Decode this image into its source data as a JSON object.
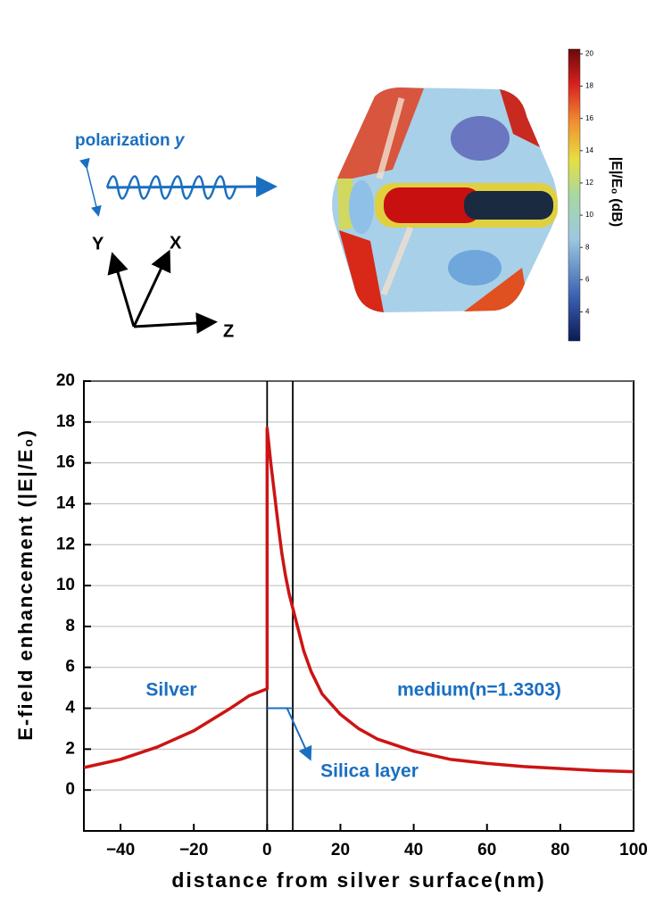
{
  "illustration": {
    "polarization": "polarization",
    "polarization_axis": "y",
    "axes": [
      "Y",
      "X",
      "Z"
    ],
    "colorbar": {
      "label": "|E|/E₀ (dB)",
      "lim": [
        2.2,
        20.3
      ],
      "ticks": [
        4,
        6,
        8,
        10,
        12,
        14,
        16,
        18,
        20
      ]
    }
  },
  "chart_data": {
    "type": "line",
    "x_label": "distance from silver surface(nm)",
    "y_label": "E-field enhancement (|E|/E₀)",
    "xlim": [
      -50,
      100
    ],
    "ylim": [
      -2,
      20
    ],
    "xticks": [
      {
        "value": -40,
        "label": "−40"
      },
      {
        "value": -20,
        "label": "−20"
      },
      0,
      20,
      40,
      60,
      80,
      100
    ],
    "yticks": [
      0,
      2,
      4,
      6,
      8,
      10,
      12,
      14,
      16,
      18,
      20
    ],
    "grid": true,
    "silica_layer": [
      0,
      7
    ],
    "annotations": [
      "Silver",
      "medium(n=1.3303)",
      "Silica layer"
    ],
    "series": [
      {
        "color": "#cc1414",
        "x": [
          -50,
          -40,
          -30,
          -20,
          -10,
          -5,
          0,
          0,
          1,
          2,
          3,
          4,
          5,
          6,
          7,
          8,
          10,
          12,
          15,
          20,
          25,
          30,
          40,
          50,
          60,
          70,
          80,
          90,
          100
        ],
        "values": [
          1.1,
          1.5,
          2.1,
          2.9,
          4.0,
          4.6,
          4.95,
          17.7,
          16,
          14.5,
          13,
          11.6,
          10.5,
          9.6,
          8.9,
          8.2,
          6.8,
          5.8,
          4.7,
          3.7,
          3.0,
          2.5,
          1.9,
          1.5,
          1.3,
          1.15,
          1.05,
          0.95,
          0.9
        ]
      }
    ]
  }
}
